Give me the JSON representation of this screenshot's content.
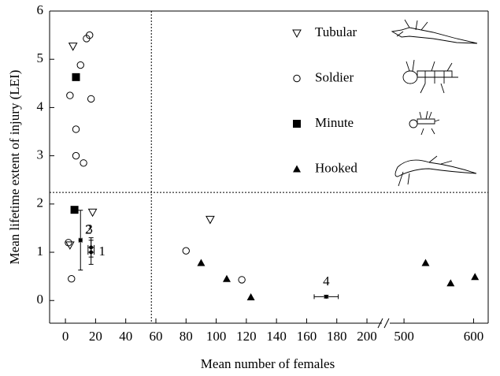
{
  "chart_data": {
    "type": "scatter",
    "x_label": "Mean number of females",
    "y_label": "Mean lifetime extent of injury (LEI)",
    "xlim": [
      -10.5,
      621
    ],
    "ylim": [
      -0.47,
      6
    ],
    "x_break": [
      212,
      475
    ],
    "xticks": [
      0,
      20,
      40,
      60,
      80,
      100,
      120,
      140,
      160,
      180,
      200,
      500,
      600
    ],
    "yticks": [
      0,
      1,
      2,
      3,
      4,
      5,
      6
    ],
    "vline": 57,
    "hline": 2.24,
    "series": [
      {
        "name": "Tubular",
        "marker": "triangle-down",
        "color": "#000000",
        "x": [
          5,
          18,
          3,
          96
        ],
        "values": [
          5.27,
          1.83,
          1.15,
          1.68
        ]
      },
      {
        "name": "Soldier",
        "marker": "circle",
        "color": "#000000",
        "x": [
          16,
          14,
          10,
          3,
          17,
          7,
          7,
          12,
          2,
          4,
          117,
          80
        ],
        "values": [
          5.5,
          5.43,
          4.88,
          4.25,
          4.18,
          3.55,
          3.0,
          2.85,
          1.2,
          0.45,
          0.43,
          1.03
        ]
      },
      {
        "name": "Minute",
        "marker": "square",
        "color": "#000000",
        "x": [
          7,
          6
        ],
        "values": [
          4.63,
          1.88
        ]
      },
      {
        "name": "Hooked",
        "marker": "triangle-up",
        "color": "#000000",
        "x": [
          90,
          107,
          123,
          531,
          567,
          602
        ],
        "values": [
          0.78,
          0.45,
          0.07,
          0.78,
          0.36,
          0.49
        ]
      }
    ],
    "error_points": {
      "labels": [
        "1",
        "2",
        "3",
        "4"
      ],
      "x": [
        17,
        10,
        17,
        173
      ],
      "values": [
        1.0,
        1.25,
        1.1,
        0.08
      ],
      "xerr": [
        2,
        1,
        2,
        8
      ],
      "yerr": [
        0.25,
        0.62,
        0.2,
        0.03
      ]
    }
  }
}
